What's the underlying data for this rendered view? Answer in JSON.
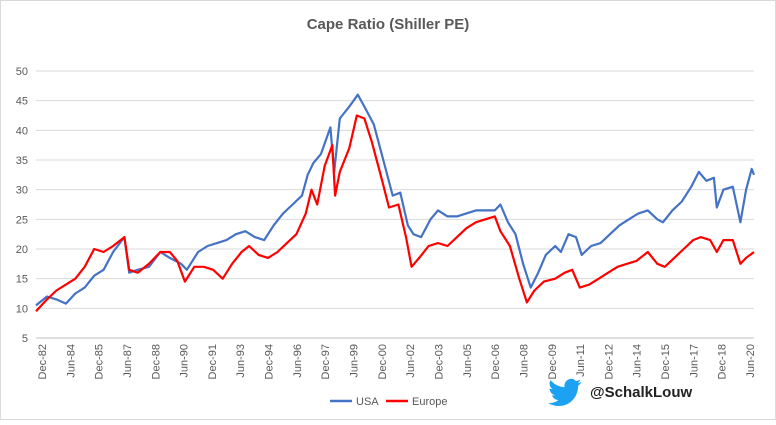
{
  "chart_data": {
    "type": "line",
    "title": "Cape Ratio (Shiller PE)",
    "xlabel": "",
    "ylabel": "",
    "ylim": [
      5,
      50
    ],
    "yticks": [
      5,
      10,
      15,
      20,
      25,
      30,
      35,
      40,
      45,
      50
    ],
    "xticks": [
      "Dec-82",
      "Jun-84",
      "Dec-85",
      "Jun-87",
      "Dec-88",
      "Jun-90",
      "Dec-91",
      "Jun-93",
      "Dec-94",
      "Jun-96",
      "Dec-97",
      "Jun-99",
      "Dec-00",
      "Jun-02",
      "Dec-03",
      "Jun-05",
      "Dec-06",
      "Jun-08",
      "Dec-09",
      "Jun-11",
      "Dec-12",
      "Jun-14",
      "Dec-15",
      "Jun-17",
      "Dec-18",
      "Jun-20"
    ],
    "grid": "horizontal",
    "legend": "bottom",
    "x_range": [
      "Dec-82",
      "Dec-20"
    ],
    "series": [
      {
        "name": "USA",
        "color": "#4472C4",
        "points": [
          [
            1982.92,
            10.5
          ],
          [
            1983.5,
            12.0
          ],
          [
            1984.0,
            11.5
          ],
          [
            1984.5,
            10.8
          ],
          [
            1985.0,
            12.5
          ],
          [
            1985.5,
            13.5
          ],
          [
            1986.0,
            15.5
          ],
          [
            1986.5,
            16.5
          ],
          [
            1987.0,
            19.5
          ],
          [
            1987.6,
            22.0
          ],
          [
            1987.85,
            16.0
          ],
          [
            1988.3,
            16.5
          ],
          [
            1988.9,
            17.0
          ],
          [
            1989.5,
            19.5
          ],
          [
            1990.0,
            18.5
          ],
          [
            1990.6,
            17.5
          ],
          [
            1990.9,
            16.5
          ],
          [
            1991.5,
            19.5
          ],
          [
            1992.0,
            20.5
          ],
          [
            1992.5,
            21.0
          ],
          [
            1993.0,
            21.5
          ],
          [
            1993.5,
            22.5
          ],
          [
            1994.0,
            23.0
          ],
          [
            1994.5,
            22.0
          ],
          [
            1995.0,
            21.5
          ],
          [
            1995.5,
            24.0
          ],
          [
            1996.0,
            26.0
          ],
          [
            1996.5,
            27.5
          ],
          [
            1997.0,
            29.0
          ],
          [
            1997.3,
            32.5
          ],
          [
            1997.6,
            34.5
          ],
          [
            1998.0,
            36.0
          ],
          [
            1998.5,
            40.5
          ],
          [
            1998.7,
            33.0
          ],
          [
            1999.0,
            42.0
          ],
          [
            1999.5,
            44.0
          ],
          [
            1999.95,
            46.0
          ],
          [
            2000.3,
            44.0
          ],
          [
            2000.8,
            41.0
          ],
          [
            2001.3,
            35.0
          ],
          [
            2001.8,
            29.0
          ],
          [
            2002.2,
            29.5
          ],
          [
            2002.6,
            24.0
          ],
          [
            2002.9,
            22.5
          ],
          [
            2003.3,
            22.0
          ],
          [
            2003.8,
            25.0
          ],
          [
            2004.2,
            26.5
          ],
          [
            2004.7,
            25.5
          ],
          [
            2005.2,
            25.5
          ],
          [
            2005.7,
            26.0
          ],
          [
            2006.2,
            26.5
          ],
          [
            2006.7,
            26.5
          ],
          [
            2007.2,
            26.5
          ],
          [
            2007.5,
            27.5
          ],
          [
            2007.9,
            24.5
          ],
          [
            2008.3,
            22.5
          ],
          [
            2008.7,
            17.5
          ],
          [
            2009.1,
            13.5
          ],
          [
            2009.5,
            16.0
          ],
          [
            2009.9,
            19.0
          ],
          [
            2010.4,
            20.5
          ],
          [
            2010.7,
            19.5
          ],
          [
            2011.1,
            22.5
          ],
          [
            2011.5,
            22.0
          ],
          [
            2011.8,
            19.0
          ],
          [
            2012.3,
            20.5
          ],
          [
            2012.8,
            21.0
          ],
          [
            2013.3,
            22.5
          ],
          [
            2013.8,
            24.0
          ],
          [
            2014.3,
            25.0
          ],
          [
            2014.8,
            26.0
          ],
          [
            2015.3,
            26.5
          ],
          [
            2015.8,
            25.0
          ],
          [
            2016.1,
            24.5
          ],
          [
            2016.6,
            26.5
          ],
          [
            2017.1,
            28.0
          ],
          [
            2017.6,
            30.5
          ],
          [
            2018.0,
            33.0
          ],
          [
            2018.4,
            31.5
          ],
          [
            2018.8,
            32.0
          ],
          [
            2018.95,
            27.0
          ],
          [
            2019.3,
            30.0
          ],
          [
            2019.8,
            30.5
          ],
          [
            2020.2,
            24.5
          ],
          [
            2020.5,
            30.0
          ],
          [
            2020.8,
            33.5
          ],
          [
            2020.92,
            32.5
          ]
        ]
      },
      {
        "name": "Europe",
        "color": "#FF0000",
        "points": [
          [
            1982.92,
            9.5
          ],
          [
            1983.5,
            11.5
          ],
          [
            1984.0,
            13.0
          ],
          [
            1984.5,
            14.0
          ],
          [
            1985.0,
            15.0
          ],
          [
            1985.5,
            17.0
          ],
          [
            1986.0,
            20.0
          ],
          [
            1986.5,
            19.5
          ],
          [
            1987.0,
            20.5
          ],
          [
            1987.6,
            22.0
          ],
          [
            1987.85,
            16.5
          ],
          [
            1988.3,
            16.0
          ],
          [
            1988.9,
            17.5
          ],
          [
            1989.5,
            19.5
          ],
          [
            1990.0,
            19.5
          ],
          [
            1990.4,
            18.0
          ],
          [
            1990.8,
            14.5
          ],
          [
            1991.3,
            17.0
          ],
          [
            1991.8,
            17.0
          ],
          [
            1992.3,
            16.5
          ],
          [
            1992.8,
            15.0
          ],
          [
            1993.3,
            17.5
          ],
          [
            1993.8,
            19.5
          ],
          [
            1994.2,
            20.5
          ],
          [
            1994.7,
            19.0
          ],
          [
            1995.2,
            18.5
          ],
          [
            1995.7,
            19.5
          ],
          [
            1996.2,
            21.0
          ],
          [
            1996.7,
            22.5
          ],
          [
            1997.2,
            26.0
          ],
          [
            1997.5,
            30.0
          ],
          [
            1997.8,
            27.5
          ],
          [
            1998.2,
            34.0
          ],
          [
            1998.6,
            37.5
          ],
          [
            1998.75,
            29.0
          ],
          [
            1999.0,
            33.0
          ],
          [
            1999.5,
            37.0
          ],
          [
            1999.9,
            42.5
          ],
          [
            2000.3,
            42.0
          ],
          [
            2000.7,
            38.0
          ],
          [
            2001.2,
            32.0
          ],
          [
            2001.6,
            27.0
          ],
          [
            2002.1,
            27.5
          ],
          [
            2002.5,
            22.0
          ],
          [
            2002.8,
            17.0
          ],
          [
            2003.2,
            18.5
          ],
          [
            2003.7,
            20.5
          ],
          [
            2004.2,
            21.0
          ],
          [
            2004.7,
            20.5
          ],
          [
            2005.2,
            22.0
          ],
          [
            2005.7,
            23.5
          ],
          [
            2006.2,
            24.5
          ],
          [
            2006.7,
            25.0
          ],
          [
            2007.2,
            25.5
          ],
          [
            2007.5,
            23.0
          ],
          [
            2008.0,
            20.5
          ],
          [
            2008.5,
            15.0
          ],
          [
            2008.9,
            11.0
          ],
          [
            2009.3,
            13.0
          ],
          [
            2009.8,
            14.5
          ],
          [
            2010.4,
            15.0
          ],
          [
            2010.9,
            16.0
          ],
          [
            2011.3,
            16.5
          ],
          [
            2011.7,
            13.5
          ],
          [
            2012.2,
            14.0
          ],
          [
            2012.7,
            15.0
          ],
          [
            2013.2,
            16.0
          ],
          [
            2013.7,
            17.0
          ],
          [
            2014.2,
            17.5
          ],
          [
            2014.7,
            18.0
          ],
          [
            2015.3,
            19.5
          ],
          [
            2015.8,
            17.5
          ],
          [
            2016.2,
            17.0
          ],
          [
            2016.7,
            18.5
          ],
          [
            2017.2,
            20.0
          ],
          [
            2017.7,
            21.5
          ],
          [
            2018.1,
            22.0
          ],
          [
            2018.6,
            21.5
          ],
          [
            2018.95,
            19.5
          ],
          [
            2019.3,
            21.5
          ],
          [
            2019.8,
            21.5
          ],
          [
            2020.2,
            17.5
          ],
          [
            2020.5,
            18.5
          ],
          [
            2020.92,
            19.5
          ]
        ]
      }
    ]
  },
  "credit": {
    "icon": "twitter-bird-icon",
    "icon_color": "#1DA1F2",
    "handle": "@SchalkLouw"
  }
}
